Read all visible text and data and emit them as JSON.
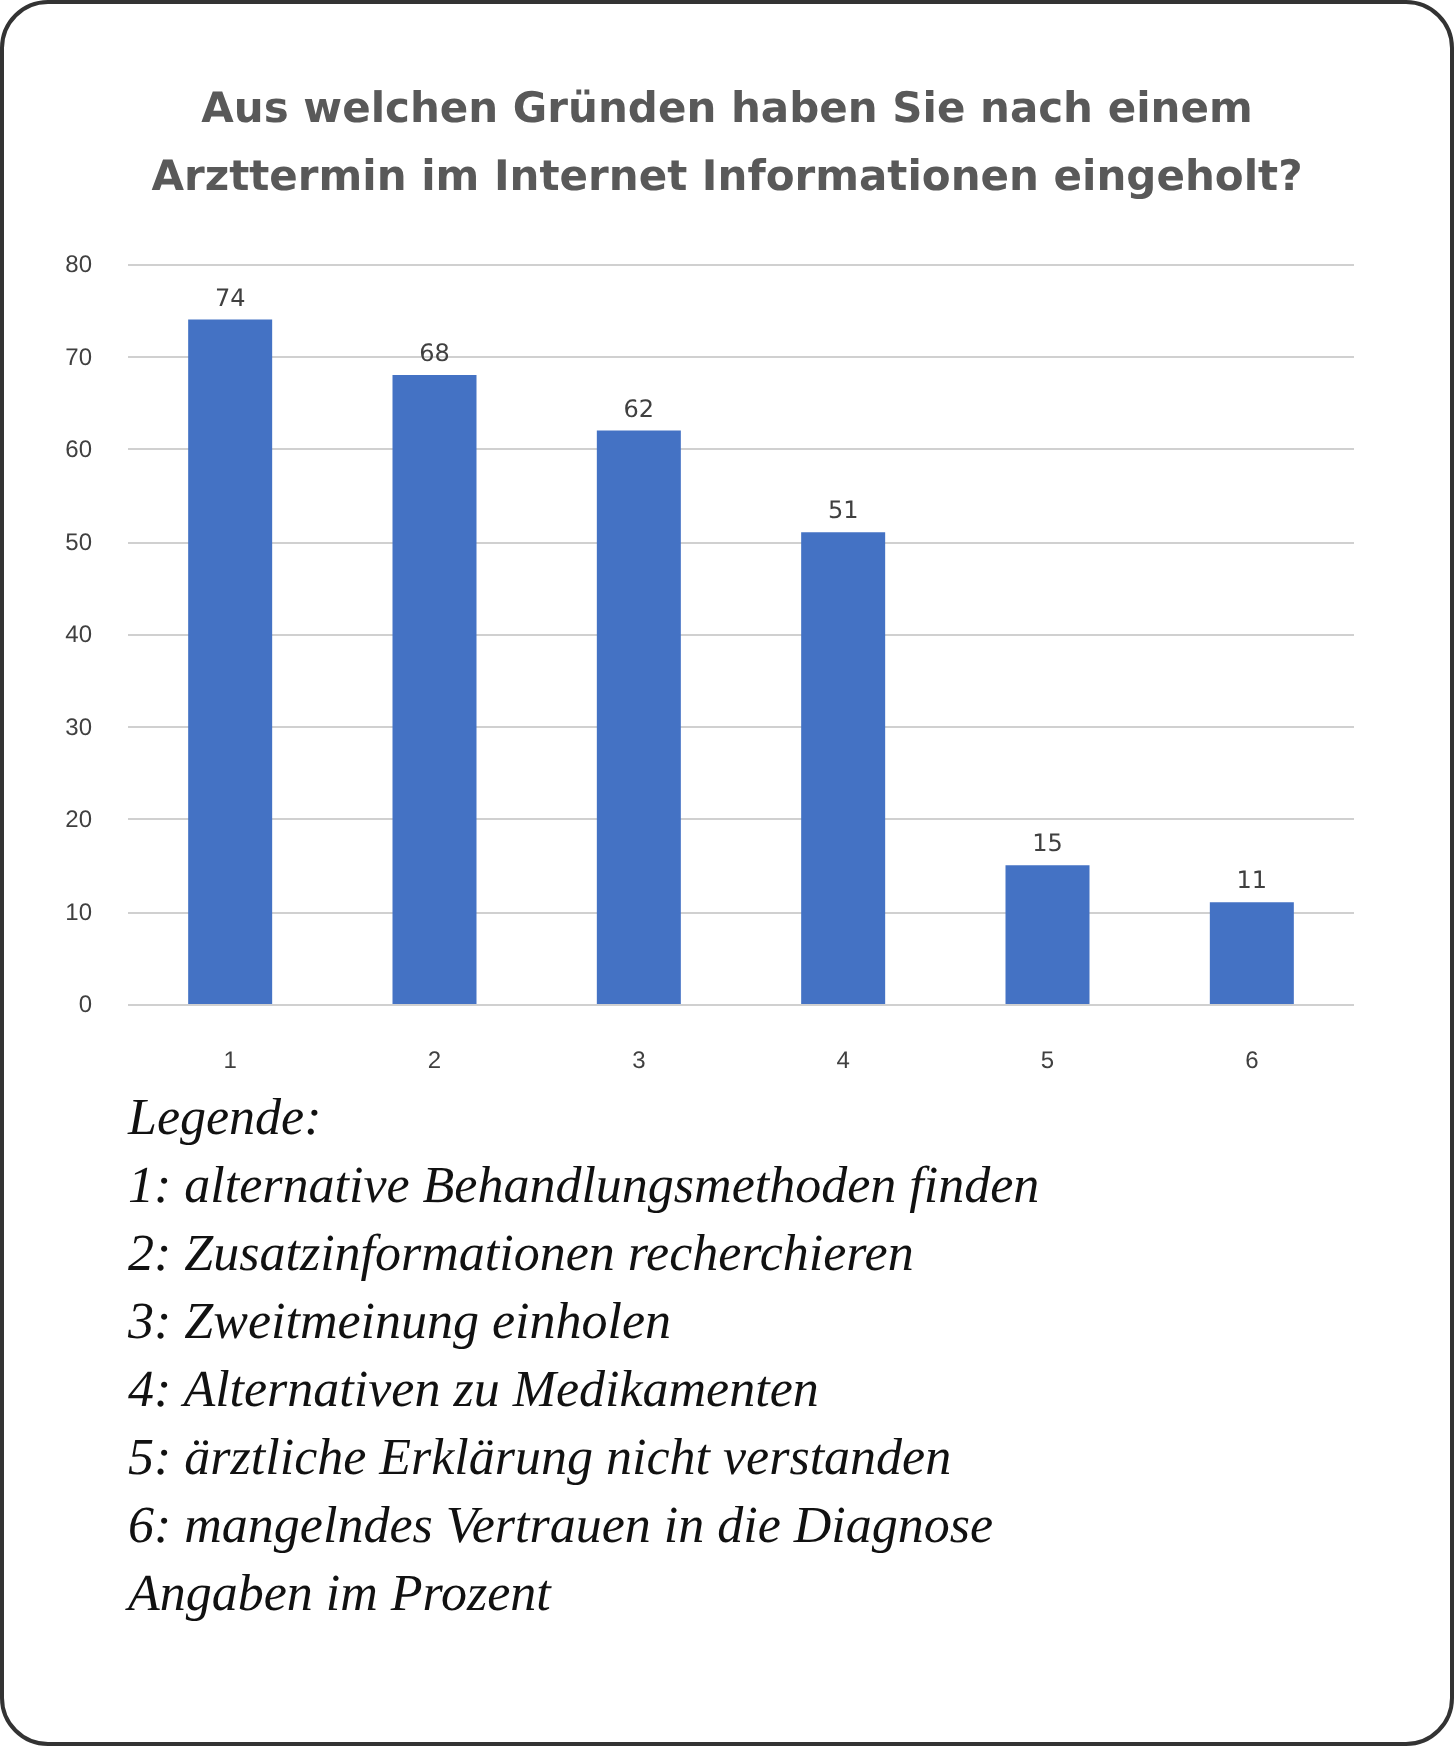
{
  "chart_data": {
    "type": "bar",
    "title": "Aus welchen Gründen haben Sie nach einem\nArzttermin im Internet Informationen eingeholt?",
    "categories": [
      "1",
      "2",
      "3",
      "4",
      "5",
      "6"
    ],
    "values": [
      74,
      68,
      62,
      51,
      15,
      11
    ],
    "color": "#4472c4",
    "ylim": [
      0,
      80
    ],
    "yticks": [
      0,
      10,
      20,
      30,
      40,
      50,
      60,
      70,
      80
    ],
    "grid": "y",
    "data_labels": true,
    "annotations": [
      "Legende:",
      "1: alternative Behandlungsmethoden finden",
      "2: Zusatzinformationen recherchieren",
      "3: Zweitmeinung einholen",
      "4: Alternativen zu Medikamenten",
      "5: ärztliche Erklärung nicht verstanden",
      "6: mangelndes Vertrauen in die Diagnose",
      "Angaben im Prozent"
    ]
  }
}
